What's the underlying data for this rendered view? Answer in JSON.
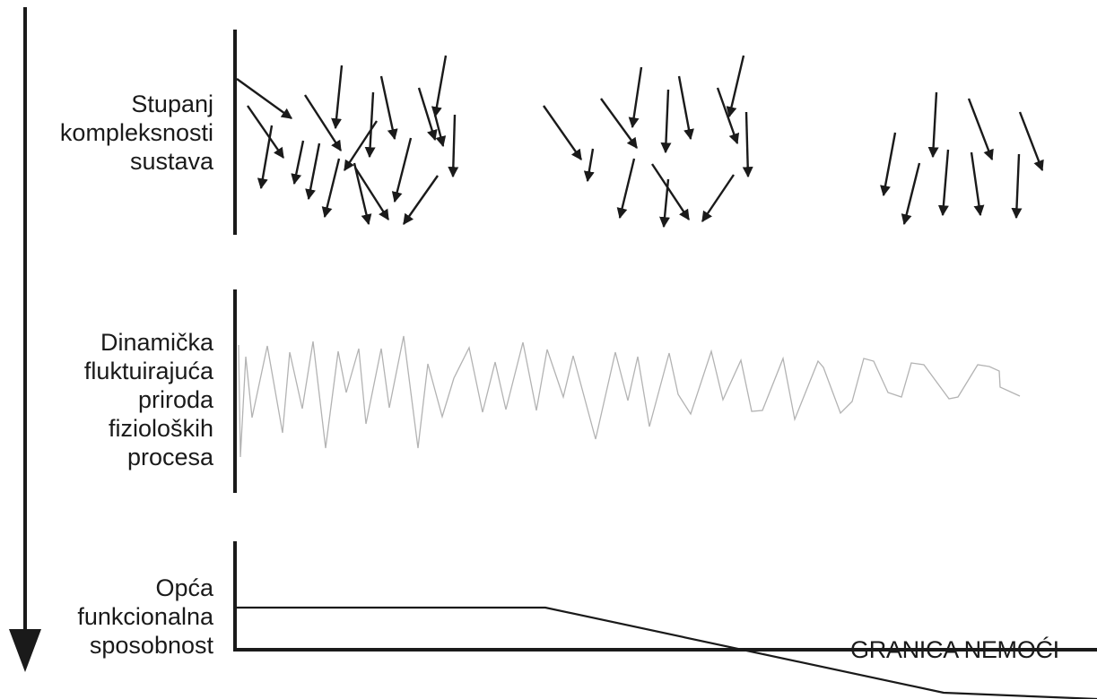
{
  "labels": {
    "complexity": [
      "Stupanj",
      "kompleksnosti",
      "sustava"
    ],
    "dynamics": [
      "Dinamička",
      "fluktuirajuća",
      "priroda",
      "fizioloških",
      "procesa"
    ],
    "function": [
      "Opća",
      "funkcionalna",
      "sposobnost"
    ],
    "boundary": "GRANICA NEMOĆI"
  },
  "colors": {
    "ink": "#1a1a1a",
    "signal": "#b3b3b3",
    "background": "#ffffff"
  }
}
